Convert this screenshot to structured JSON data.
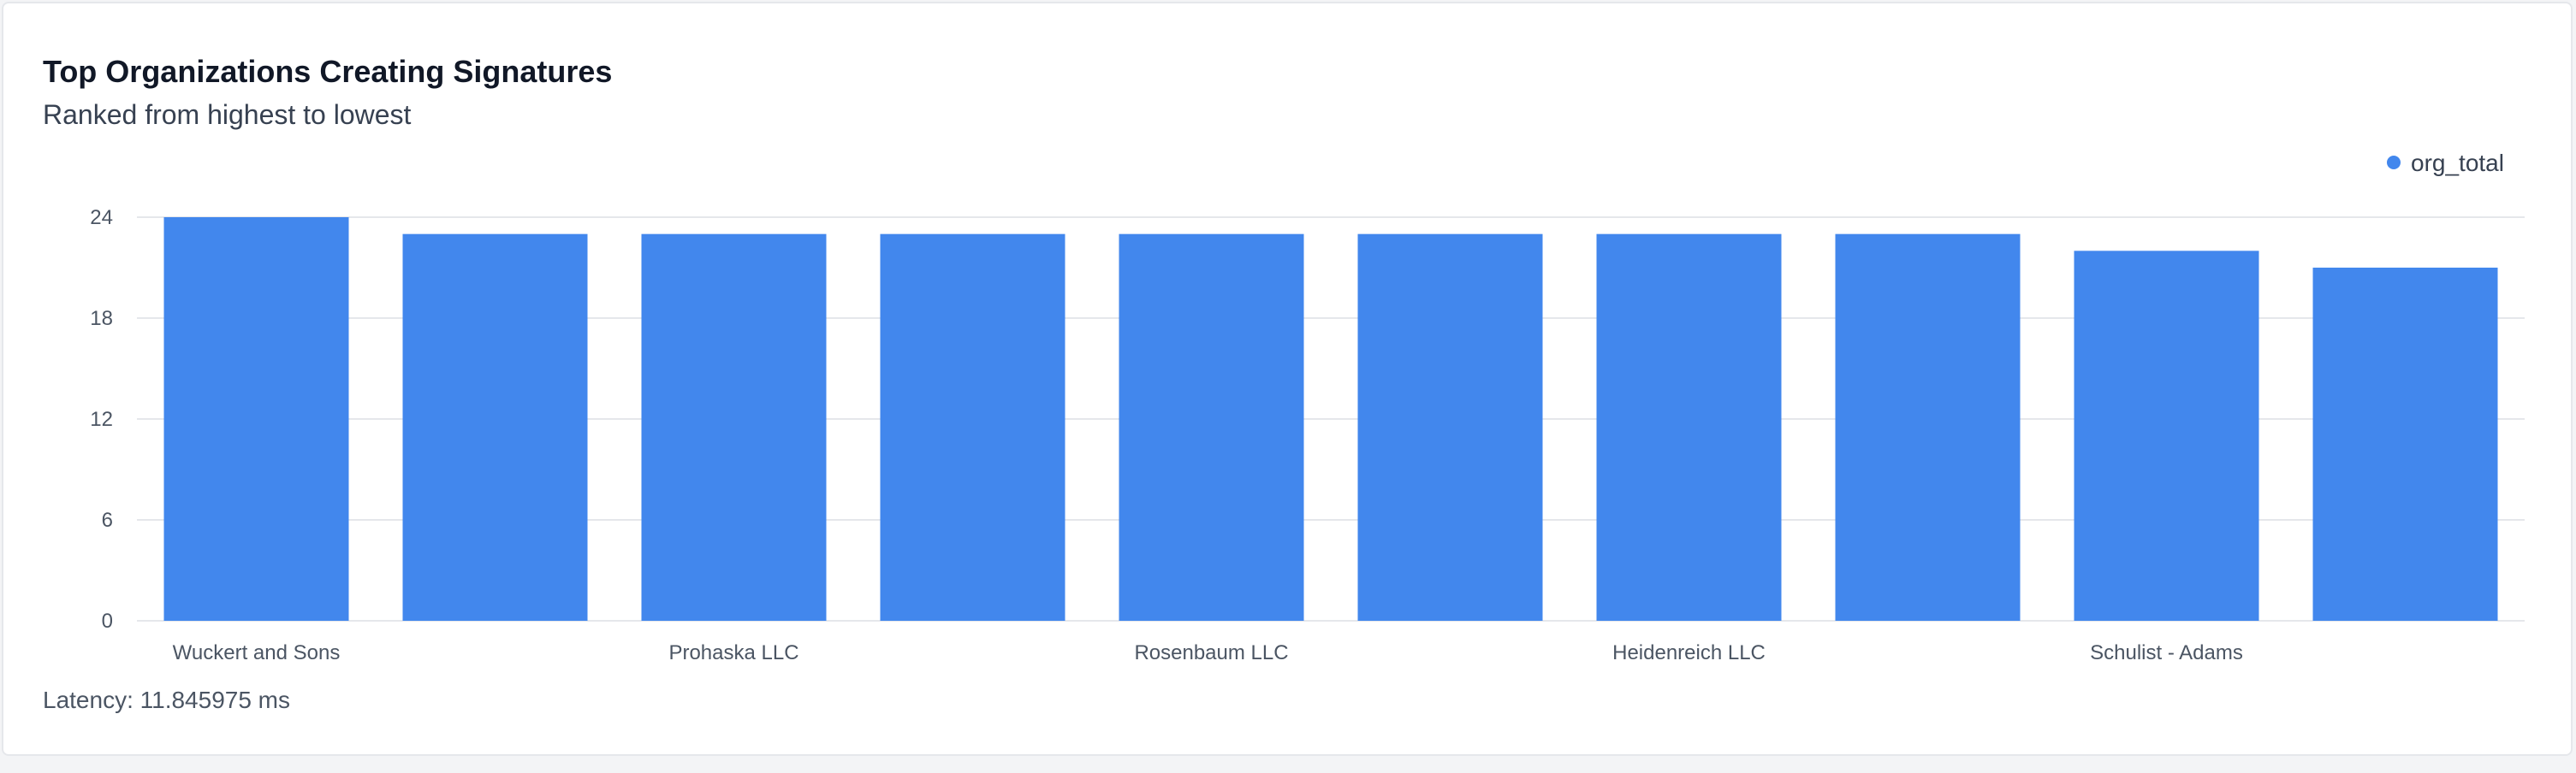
{
  "card": {
    "title": "Top Organizations Creating Signatures",
    "subtitle": "Ranked from highest to lowest",
    "latency_text": "Latency: 11.845975 ms"
  },
  "chart_data": {
    "type": "bar",
    "categories": [
      "Wuckert and Sons",
      "",
      "Prohaska LLC",
      "",
      "Rosenbaum LLC",
      "",
      "Heidenreich LLC",
      "",
      "Schulist - Adams",
      ""
    ],
    "series": [
      {
        "name": "org_total",
        "values": [
          24,
          23,
          23,
          23,
          23,
          23,
          23,
          23,
          22,
          21
        ],
        "color": "#4287ed"
      }
    ],
    "yticks": [
      0,
      6,
      12,
      18,
      24
    ],
    "ylim": [
      0,
      24
    ],
    "grid": true,
    "legend_position": "top-right"
  }
}
